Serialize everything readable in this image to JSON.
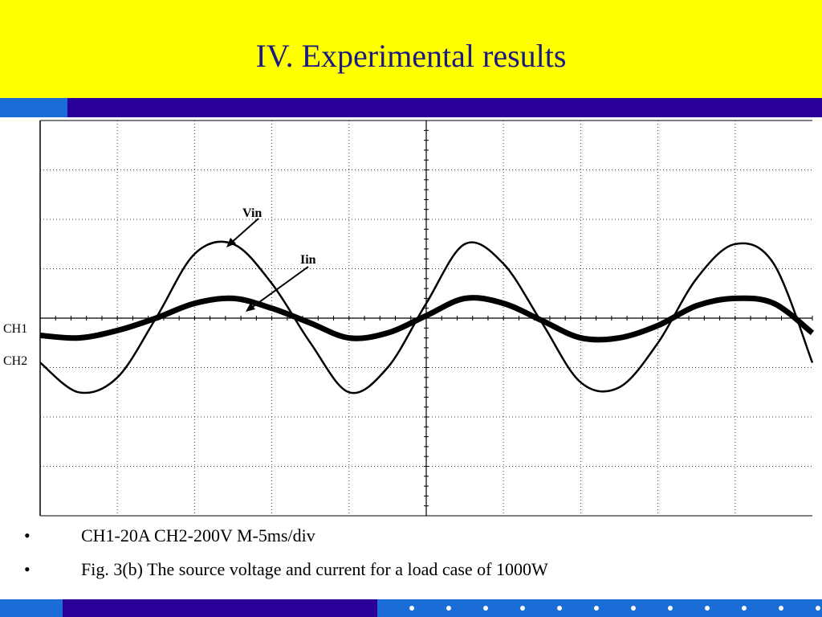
{
  "slide": {
    "title": "IV. Experimental results",
    "colors": {
      "title_bg": "#ffff00",
      "title_text": "#1a1a80",
      "stripe_light": "#1a6dd6",
      "stripe_dark": "#2b0099"
    }
  },
  "scope": {
    "channel_labels": [
      "CH1",
      "CH2"
    ],
    "annotations": {
      "vin": "Vin",
      "iin": "Iin"
    },
    "grid": "on"
  },
  "chart_data": {
    "type": "line",
    "title": "",
    "xlabel": "",
    "ylabel": "",
    "x_divisions": 10,
    "y_divisions": 8,
    "xlim_div": [
      0,
      10
    ],
    "ylim_div": [
      -4,
      4
    ],
    "series": [
      {
        "name": "Vin",
        "x_div": [
          0,
          0.5,
          1,
          1.5,
          2,
          2.5,
          3,
          3.5,
          4,
          4.5,
          5,
          5.5,
          6,
          6.5,
          7,
          7.5,
          8,
          8.5,
          9,
          9.5,
          10
        ],
        "y_div": [
          -0.9,
          -1.5,
          -1.2,
          0.0,
          1.3,
          1.5,
          0.7,
          -0.5,
          -1.5,
          -1.0,
          0.3,
          1.5,
          1.1,
          -0.1,
          -1.3,
          -1.4,
          -0.5,
          0.8,
          1.5,
          1.1,
          -0.9
        ]
      },
      {
        "name": "Iin",
        "x_div": [
          0,
          0.5,
          1,
          1.5,
          2,
          2.5,
          3,
          3.5,
          4,
          4.5,
          5,
          5.5,
          6,
          6.5,
          7,
          7.5,
          8,
          8.5,
          9,
          9.5,
          10
        ],
        "y_div": [
          -0.35,
          -0.4,
          -0.25,
          0.0,
          0.3,
          0.4,
          0.2,
          -0.1,
          -0.4,
          -0.3,
          0.05,
          0.4,
          0.3,
          -0.05,
          -0.4,
          -0.4,
          -0.15,
          0.25,
          0.4,
          0.3,
          -0.3
        ]
      }
    ]
  },
  "captions": [
    "CH1-20A CH2-200V M-5ms/div",
    "Fig. 3(b) The source voltage and current for a load case of 1000W"
  ],
  "bullet_char": "•",
  "footer_dot_count": 12
}
